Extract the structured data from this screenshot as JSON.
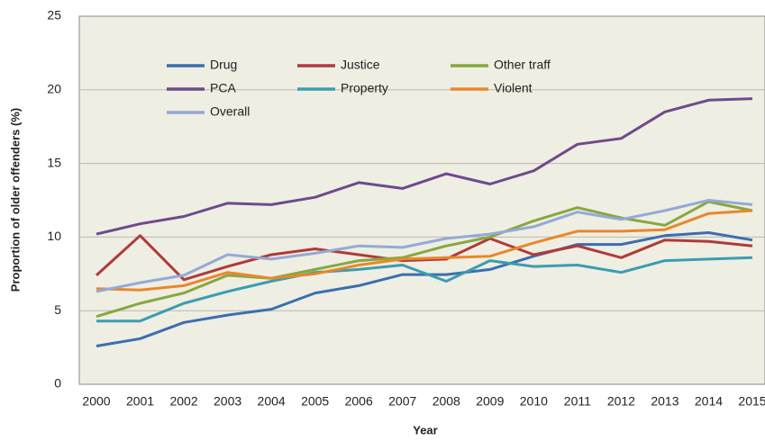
{
  "chart_data": {
    "type": "line",
    "xlabel": "Year",
    "ylabel": "Proportion of older offenders (%)",
    "categories": [
      "2000",
      "2001",
      "2002",
      "2003",
      "2004",
      "2005",
      "2006",
      "2007",
      "2008",
      "2009",
      "2010",
      "2011",
      "2012",
      "2013",
      "2014",
      "2015"
    ],
    "ylim": [
      0,
      25
    ],
    "yticks": [
      0,
      5,
      10,
      15,
      20,
      25
    ],
    "grid": true,
    "series": [
      {
        "name": "Drug",
        "color": "#3a6fb0",
        "values": [
          2.6,
          3.1,
          4.2,
          4.7,
          5.1,
          6.2,
          6.7,
          7.45,
          7.45,
          7.8,
          8.7,
          9.5,
          9.5,
          10.1,
          10.3,
          9.8
        ]
      },
      {
        "name": "Justice",
        "color": "#b03a3a",
        "values": [
          7.4,
          10.1,
          7.1,
          8.0,
          8.8,
          9.2,
          8.8,
          8.4,
          8.5,
          9.9,
          8.8,
          9.4,
          8.6,
          9.8,
          9.7,
          9.4
        ]
      },
      {
        "name": "Other traff",
        "color": "#86a83e",
        "values": [
          4.6,
          5.5,
          6.2,
          7.4,
          7.2,
          7.8,
          8.4,
          8.6,
          9.4,
          10.0,
          11.1,
          12.0,
          11.3,
          10.8,
          12.4,
          11.8
        ]
      },
      {
        "name": "PCA",
        "color": "#6e4a8c",
        "values": [
          10.2,
          10.9,
          11.4,
          12.3,
          12.2,
          12.7,
          13.7,
          13.3,
          14.3,
          13.6,
          14.5,
          16.3,
          16.7,
          18.5,
          19.3,
          19.4
        ]
      },
      {
        "name": "Property",
        "color": "#3a9db0",
        "values": [
          4.3,
          4.3,
          5.5,
          6.3,
          7.0,
          7.6,
          7.8,
          8.1,
          7.0,
          8.4,
          8.0,
          8.1,
          7.6,
          8.4,
          8.5,
          8.6
        ]
      },
      {
        "name": "Violent",
        "color": "#e8882a",
        "values": [
          6.5,
          6.4,
          6.7,
          7.6,
          7.2,
          7.5,
          8.1,
          8.5,
          8.6,
          8.7,
          9.6,
          10.4,
          10.4,
          10.5,
          11.6,
          11.8
        ]
      },
      {
        "name": "Overall",
        "color": "#93aad6",
        "values": [
          6.3,
          6.9,
          7.4,
          8.8,
          8.5,
          8.9,
          9.4,
          9.3,
          9.9,
          10.2,
          10.7,
          11.7,
          11.2,
          11.8,
          12.5,
          12.2
        ]
      }
    ]
  }
}
